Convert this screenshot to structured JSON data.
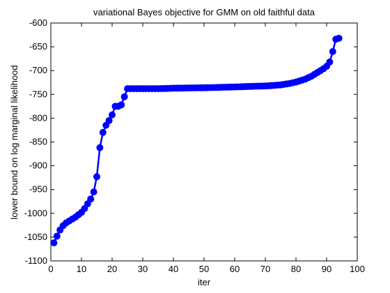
{
  "chart_data": {
    "type": "line",
    "title": "variational Bayes objective for GMM on old faithful data",
    "xlabel": "iter",
    "ylabel": "lower bound on log marginal likelihood",
    "xlim": [
      0,
      100
    ],
    "ylim": [
      -1100,
      -600
    ],
    "xticks": [
      "0",
      "10",
      "20",
      "30",
      "40",
      "50",
      "60",
      "70",
      "80",
      "90",
      "100"
    ],
    "yticks": [
      "-600",
      "-650",
      "-700",
      "-750",
      "-800",
      "-850",
      "-900",
      "-950",
      "-1000",
      "-1050",
      "-1100"
    ],
    "grid": false,
    "marker": "circle",
    "series_color": "#0000ff",
    "series": [
      {
        "x": [
          1,
          2,
          3,
          4,
          5,
          6,
          7,
          8,
          9,
          10,
          11,
          12,
          13,
          14,
          15,
          16,
          17,
          18,
          19,
          20,
          21,
          22,
          23,
          24,
          25,
          26,
          27,
          28,
          29,
          30,
          31,
          32,
          33,
          34,
          35,
          36,
          37,
          38,
          39,
          40,
          41,
          42,
          43,
          44,
          45,
          46,
          47,
          48,
          49,
          50,
          51,
          52,
          53,
          54,
          55,
          56,
          57,
          58,
          59,
          60,
          61,
          62,
          63,
          64,
          65,
          66,
          67,
          68,
          69,
          70,
          71,
          72,
          73,
          74,
          75,
          76,
          77,
          78,
          79,
          80,
          81,
          82,
          83,
          84,
          85,
          86,
          87,
          88,
          89,
          90,
          91,
          92,
          93,
          94
        ],
        "y": [
          -1062,
          -1048,
          -1035,
          -1026,
          -1020,
          -1016,
          -1012,
          -1008,
          -1003,
          -998,
          -990,
          -980,
          -970,
          -955,
          -923,
          -862,
          -830,
          -815,
          -805,
          -793,
          -775,
          -775,
          -772,
          -755,
          -738,
          -738,
          -738,
          -738,
          -738,
          -738,
          -738,
          -738,
          -738,
          -738,
          -738,
          -737.8,
          -737.6,
          -737.4,
          -737.2,
          -737,
          -736.9,
          -736.8,
          -736.7,
          -736.6,
          -736.5,
          -736.4,
          -736.3,
          -736.2,
          -736.1,
          -736,
          -735.9,
          -735.8,
          -735.7,
          -735.5,
          -735.3,
          -735.1,
          -734.9,
          -734.7,
          -734.5,
          -734.3,
          -734.1,
          -733.9,
          -733.7,
          -733.5,
          -733.3,
          -733.1,
          -732.9,
          -732.7,
          -732.5,
          -732.3,
          -732,
          -731.5,
          -731,
          -730.5,
          -730,
          -729,
          -728,
          -727,
          -725.5,
          -724,
          -722,
          -720,
          -718,
          -715,
          -712,
          -708,
          -704,
          -700,
          -696,
          -691,
          -682,
          -660,
          -634,
          -632
        ]
      }
    ]
  }
}
